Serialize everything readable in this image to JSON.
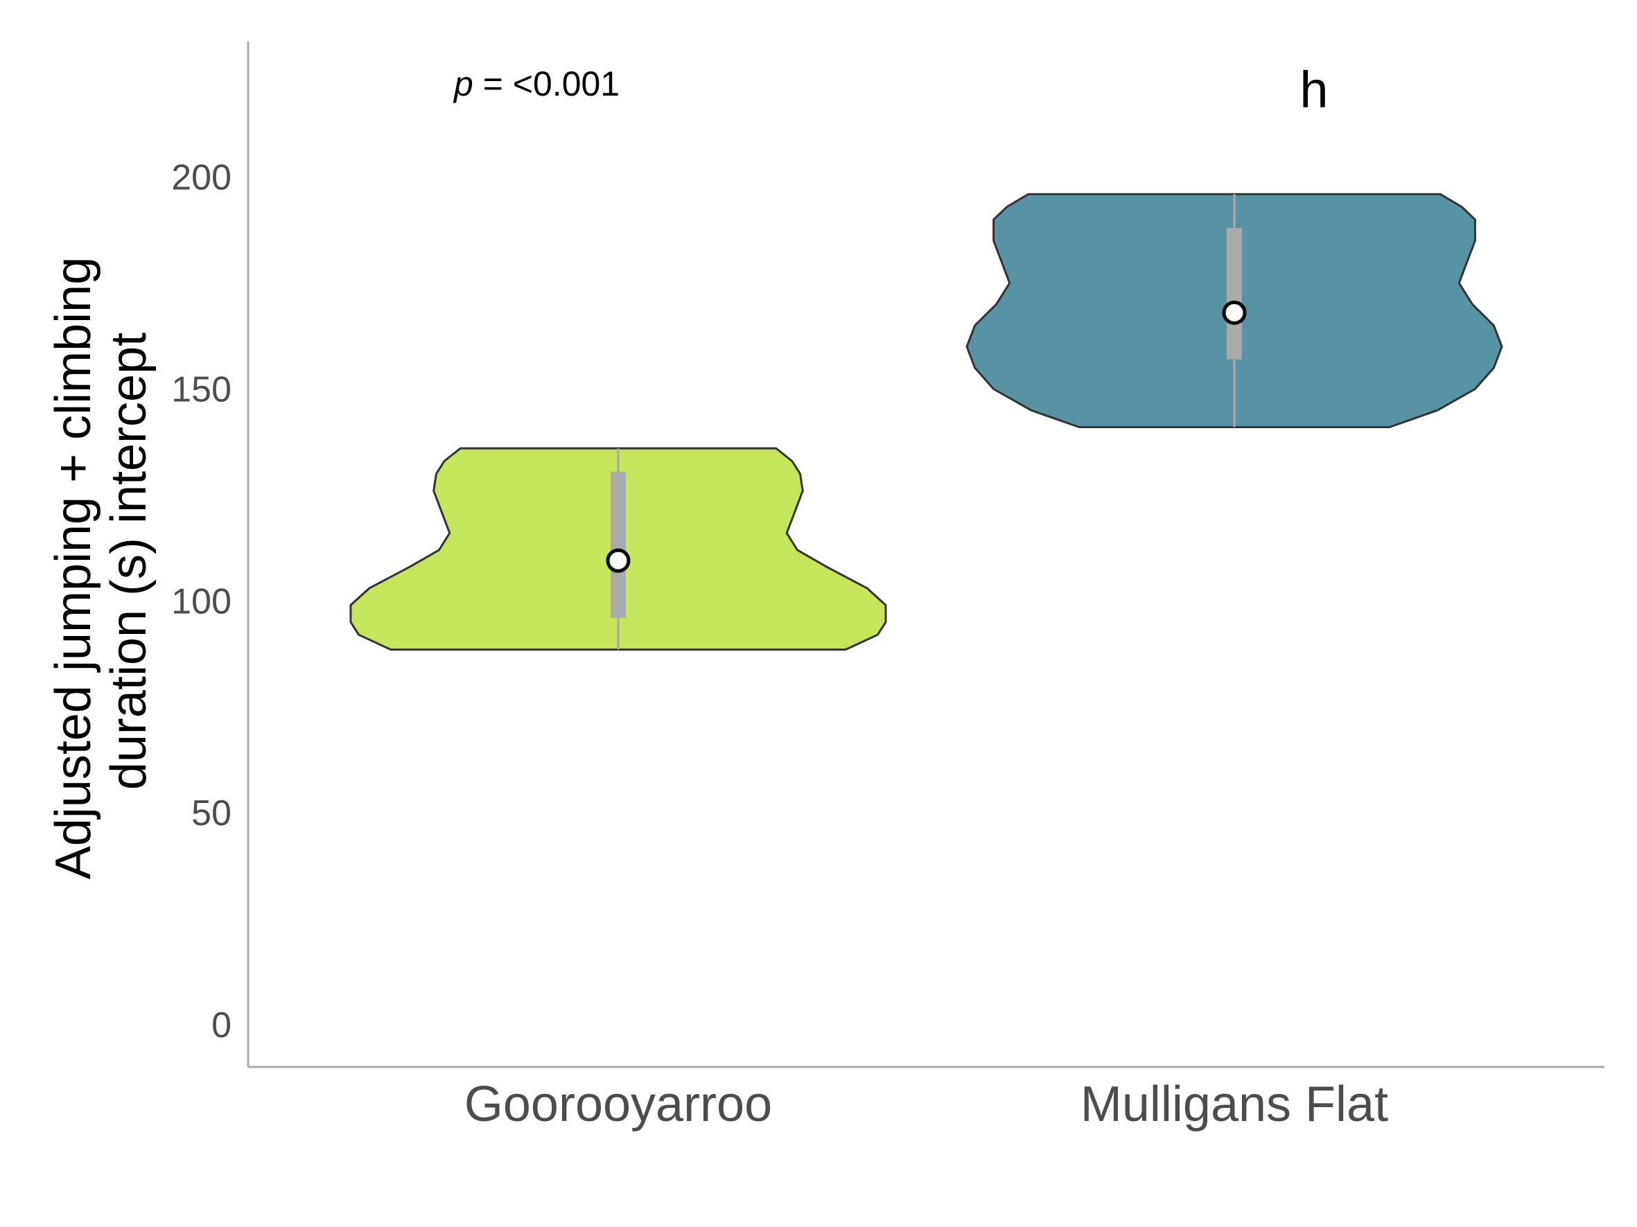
{
  "chart_data": {
    "type": "violin",
    "panel_label": "h",
    "annotation": {
      "p_symbol": "p",
      "p_text": " = <0.001"
    },
    "ylabel_lines": [
      "Adjusted jumping + climbing",
      "duration (s) intercept"
    ],
    "xlabel": "",
    "ylim": [
      -10,
      232
    ],
    "yticks": [
      0,
      50,
      100,
      150,
      200
    ],
    "grid": false,
    "legend": "none",
    "categories": [
      "Goorooyarroo",
      "Mulligans Flat"
    ],
    "groups": [
      {
        "name": "Goorooyarroo",
        "color": "#c5e55a",
        "min": 88.5,
        "max": 136,
        "q1": 96,
        "q3": 130.5,
        "mean": 109.5,
        "density": [
          [
            88.5,
            0.85
          ],
          [
            92,
            0.97
          ],
          [
            95,
            1.0
          ],
          [
            99,
            1.0
          ],
          [
            103,
            0.93
          ],
          [
            108,
            0.78
          ],
          [
            112,
            0.67
          ],
          [
            116,
            0.63
          ],
          [
            121,
            0.66
          ],
          [
            126,
            0.69
          ],
          [
            130,
            0.68
          ],
          [
            133,
            0.65
          ],
          [
            136,
            0.59
          ]
        ]
      },
      {
        "name": "Mulligans Flat",
        "color": "#5893a4",
        "min": 141,
        "max": 196,
        "q1": 157,
        "q3": 188,
        "mean": 168,
        "density": [
          [
            141,
            0.58
          ],
          [
            145,
            0.76
          ],
          [
            150,
            0.9
          ],
          [
            155,
            0.97
          ],
          [
            160,
            1.0
          ],
          [
            165,
            0.97
          ],
          [
            170,
            0.89
          ],
          [
            175,
            0.84
          ],
          [
            180,
            0.87
          ],
          [
            185,
            0.9
          ],
          [
            190,
            0.9
          ],
          [
            193,
            0.85
          ],
          [
            196,
            0.77
          ]
        ]
      }
    ]
  }
}
